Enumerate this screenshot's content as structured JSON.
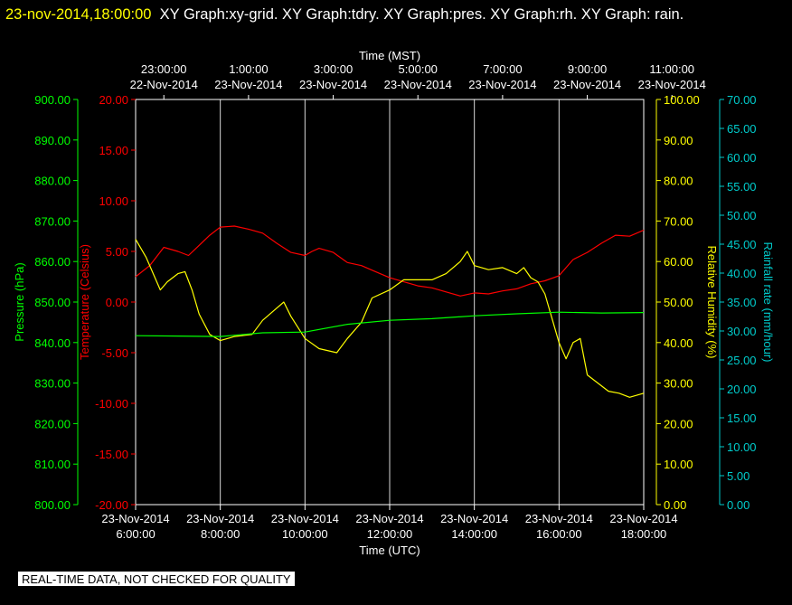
{
  "header": {
    "timestamp": "23-nov-2014,18:00:00",
    "titles": "XY Graph:xy-grid.  XY Graph:tdry.  XY Graph:pres.  XY Graph:rh.  XY Graph: rain."
  },
  "disclaimer": "REAL-TIME DATA, NOT CHECKED FOR QUALITY",
  "colors": {
    "temperature": "#ff0000",
    "pressure": "#00ff00",
    "humidity": "#ffff00",
    "rain": "#00cccc",
    "grid": "#ffffff",
    "frame": "#ffffff"
  },
  "chart_data": {
    "type": "line",
    "grid": true,
    "x_top": {
      "label": "Time (MST)",
      "ticks": [
        {
          "time": "23:00:00",
          "date": "22-Nov-2014"
        },
        {
          "time": "1:00:00",
          "date": "23-Nov-2014"
        },
        {
          "time": "3:00:00",
          "date": "23-Nov-2014"
        },
        {
          "time": "5:00:00",
          "date": "23-Nov-2014"
        },
        {
          "time": "7:00:00",
          "date": "23-Nov-2014"
        },
        {
          "time": "9:00:00",
          "date": "23-Nov-2014"
        },
        {
          "time": "11:00:00",
          "date": "23-Nov-2014"
        }
      ]
    },
    "x_bottom": {
      "label": "Time (UTC)",
      "range": [
        "2014-11-23 06:00",
        "2014-11-23 18:00"
      ],
      "ticks": [
        {
          "date": "23-Nov-2014",
          "time": "6:00:00"
        },
        {
          "date": "23-Nov-2014",
          "time": "8:00:00"
        },
        {
          "date": "23-Nov-2014",
          "time": "10:00:00"
        },
        {
          "date": "23-Nov-2014",
          "time": "12:00:00"
        },
        {
          "date": "23-Nov-2014",
          "time": "14:00:00"
        },
        {
          "date": "23-Nov-2014",
          "time": "16:00:00"
        },
        {
          "date": "23-Nov-2014",
          "time": "18:00:00"
        }
      ]
    },
    "axes": {
      "pressure": {
        "label": "Pressure (hPa)",
        "range": [
          800,
          900
        ],
        "ticks": [
          "800.00",
          "810.00",
          "820.00",
          "830.00",
          "840.00",
          "850.00",
          "860.00",
          "870.00",
          "880.00",
          "890.00",
          "900.00"
        ]
      },
      "temperature": {
        "label": "Temperature (Celsius)",
        "range": [
          -20,
          20
        ],
        "ticks": [
          "-20.00",
          "-15.00",
          "-10.00",
          "-5.00",
          "0.00",
          "5.00",
          "10.00",
          "15.00",
          "20.00"
        ]
      },
      "humidity": {
        "label": "Relative Humidity (%)",
        "range": [
          0,
          100
        ],
        "ticks": [
          "0.00",
          "10.00",
          "20.00",
          "30.00",
          "40.00",
          "50.00",
          "60.00",
          "70.00",
          "80.00",
          "90.00",
          "100.00"
        ]
      },
      "rain": {
        "label": "Rainfall rate (mm/hour)",
        "range": [
          0,
          70
        ],
        "ticks": [
          "0.00",
          "5.00",
          "10.00",
          "15.00",
          "20.00",
          "25.00",
          "30.00",
          "35.00",
          "40.00",
          "45.00",
          "50.00",
          "55.00",
          "60.00",
          "65.00",
          "70.00"
        ]
      }
    },
    "series": [
      {
        "key": "temperature",
        "axis": "temperature",
        "points": [
          [
            "2014-11-23 06:00",
            2.5
          ],
          [
            "2014-11-23 06:20",
            3.6
          ],
          [
            "2014-11-23 06:40",
            5.4
          ],
          [
            "2014-11-23 07:00",
            5.0
          ],
          [
            "2014-11-23 07:15",
            4.6
          ],
          [
            "2014-11-23 07:30",
            5.6
          ],
          [
            "2014-11-23 07:45",
            6.6
          ],
          [
            "2014-11-23 08:00",
            7.4
          ],
          [
            "2014-11-23 08:20",
            7.5
          ],
          [
            "2014-11-23 08:40",
            7.2
          ],
          [
            "2014-11-23 09:00",
            6.8
          ],
          [
            "2014-11-23 09:20",
            5.8
          ],
          [
            "2014-11-23 09:40",
            4.9
          ],
          [
            "2014-11-23 10:00",
            4.6
          ],
          [
            "2014-11-23 10:10",
            5.0
          ],
          [
            "2014-11-23 10:20",
            5.3
          ],
          [
            "2014-11-23 10:40",
            4.9
          ],
          [
            "2014-11-23 11:00",
            3.9
          ],
          [
            "2014-11-23 11:20",
            3.6
          ],
          [
            "2014-11-23 11:40",
            3.0
          ],
          [
            "2014-11-23 12:00",
            2.4
          ],
          [
            "2014-11-23 12:20",
            2.0
          ],
          [
            "2014-11-23 12:40",
            1.6
          ],
          [
            "2014-11-23 13:00",
            1.4
          ],
          [
            "2014-11-23 13:20",
            1.0
          ],
          [
            "2014-11-23 13:40",
            0.6
          ],
          [
            "2014-11-23 14:00",
            0.9
          ],
          [
            "2014-11-23 14:20",
            0.8
          ],
          [
            "2014-11-23 14:40",
            1.1
          ],
          [
            "2014-11-23 15:00",
            1.3
          ],
          [
            "2014-11-23 15:20",
            1.8
          ],
          [
            "2014-11-23 15:40",
            2.1
          ],
          [
            "2014-11-23 16:00",
            2.6
          ],
          [
            "2014-11-23 16:20",
            4.2
          ],
          [
            "2014-11-23 16:40",
            4.9
          ],
          [
            "2014-11-23 17:00",
            5.8
          ],
          [
            "2014-11-23 17:20",
            6.6
          ],
          [
            "2014-11-23 17:40",
            6.5
          ],
          [
            "2014-11-23 18:00",
            7.1
          ]
        ]
      },
      {
        "key": "humidity",
        "axis": "humidity",
        "points": [
          [
            "2014-11-23 06:00",
            65.5
          ],
          [
            "2014-11-23 06:15",
            61
          ],
          [
            "2014-11-23 06:35",
            53
          ],
          [
            "2014-11-23 06:45",
            55
          ],
          [
            "2014-11-23 07:00",
            57
          ],
          [
            "2014-11-23 07:10",
            57.5
          ],
          [
            "2014-11-23 07:20",
            53
          ],
          [
            "2014-11-23 07:30",
            47
          ],
          [
            "2014-11-23 07:45",
            42
          ],
          [
            "2014-11-23 08:00",
            40.5
          ],
          [
            "2014-11-23 08:20",
            41.5
          ],
          [
            "2014-11-23 08:45",
            42
          ],
          [
            "2014-11-23 09:00",
            45.5
          ],
          [
            "2014-11-23 09:20",
            48.5
          ],
          [
            "2014-11-23 09:30",
            50
          ],
          [
            "2014-11-23 09:40",
            46.5
          ],
          [
            "2014-11-23 10:00",
            41
          ],
          [
            "2014-11-23 10:20",
            38.5
          ],
          [
            "2014-11-23 10:45",
            37.5
          ],
          [
            "2014-11-23 11:00",
            41
          ],
          [
            "2014-11-23 11:20",
            45
          ],
          [
            "2014-11-23 11:35",
            51
          ],
          [
            "2014-11-23 12:00",
            53
          ],
          [
            "2014-11-23 12:20",
            55.5
          ],
          [
            "2014-11-23 12:40",
            55.5
          ],
          [
            "2014-11-23 13:00",
            55.5
          ],
          [
            "2014-11-23 13:20",
            57
          ],
          [
            "2014-11-23 13:40",
            60
          ],
          [
            "2014-11-23 13:50",
            62.5
          ],
          [
            "2014-11-23 14:00",
            59
          ],
          [
            "2014-11-23 14:20",
            58
          ],
          [
            "2014-11-23 14:40",
            58.5
          ],
          [
            "2014-11-23 15:00",
            57
          ],
          [
            "2014-11-23 15:10",
            58.5
          ],
          [
            "2014-11-23 15:20",
            56
          ],
          [
            "2014-11-23 15:30",
            55
          ],
          [
            "2014-11-23 15:40",
            52
          ],
          [
            "2014-11-23 15:50",
            46
          ],
          [
            "2014-11-23 16:00",
            40
          ],
          [
            "2014-11-23 16:10",
            36
          ],
          [
            "2014-11-23 16:20",
            40
          ],
          [
            "2014-11-23 16:30",
            41
          ],
          [
            "2014-11-23 16:40",
            32
          ],
          [
            "2014-11-23 16:55",
            30
          ],
          [
            "2014-11-23 17:10",
            28
          ],
          [
            "2014-11-23 17:25",
            27.5
          ],
          [
            "2014-11-23 17:40",
            26.5
          ],
          [
            "2014-11-23 18:00",
            27.5
          ]
        ]
      },
      {
        "key": "pressure",
        "axis": "pressure",
        "points": [
          [
            "2014-11-23 06:00",
            841.7
          ],
          [
            "2014-11-23 07:00",
            841.6
          ],
          [
            "2014-11-23 08:00",
            841.5
          ],
          [
            "2014-11-23 09:00",
            842.4
          ],
          [
            "2014-11-23 10:00",
            842.6
          ],
          [
            "2014-11-23 11:00",
            844.5
          ],
          [
            "2014-11-23 12:00",
            845.5
          ],
          [
            "2014-11-23 13:00",
            845.9
          ],
          [
            "2014-11-23 14:00",
            846.6
          ],
          [
            "2014-11-23 15:00",
            847.1
          ],
          [
            "2014-11-23 16:00",
            847.5
          ],
          [
            "2014-11-23 17:00",
            847.3
          ],
          [
            "2014-11-23 18:00",
            847.4
          ]
        ]
      }
    ]
  }
}
